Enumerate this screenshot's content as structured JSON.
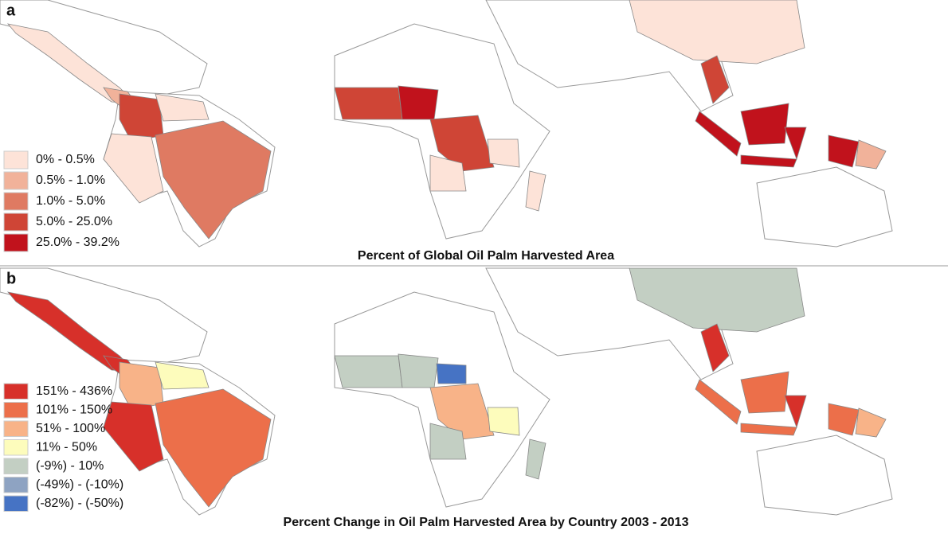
{
  "panels": [
    {
      "label": "a",
      "title": "Percent of Global Oil Palm Harvested Area",
      "legend": [
        {
          "label": "0% - 0.5%",
          "color": "#fde3d8"
        },
        {
          "label": "0.5% - 1.0%",
          "color": "#f1b29a"
        },
        {
          "label": "1.0% - 5.0%",
          "color": "#df7a62"
        },
        {
          "label": "5.0% - 25.0%",
          "color": "#cf4536"
        },
        {
          "label": "25.0% - 39.2%",
          "color": "#c1121c"
        }
      ]
    },
    {
      "label": "b",
      "title": "Percent Change in Oil Palm Harvested Area by Country 2003 - 2013",
      "legend": [
        {
          "label": "151% - 436%",
          "color": "#d7302a"
        },
        {
          "label": "101% - 150%",
          "color": "#ec6f4a"
        },
        {
          "label": "51% - 100%",
          "color": "#f8b388"
        },
        {
          "label": "11% - 50%",
          "color": "#fdfcbc"
        },
        {
          "label": "(-9%) - 10%",
          "color": "#c3cfc3"
        },
        {
          "label": "(-49%) - (-10%)",
          "color": "#8ea3c2"
        },
        {
          "label": "(-82%) - (-50%)",
          "color": "#4673c4"
        }
      ]
    }
  ]
}
